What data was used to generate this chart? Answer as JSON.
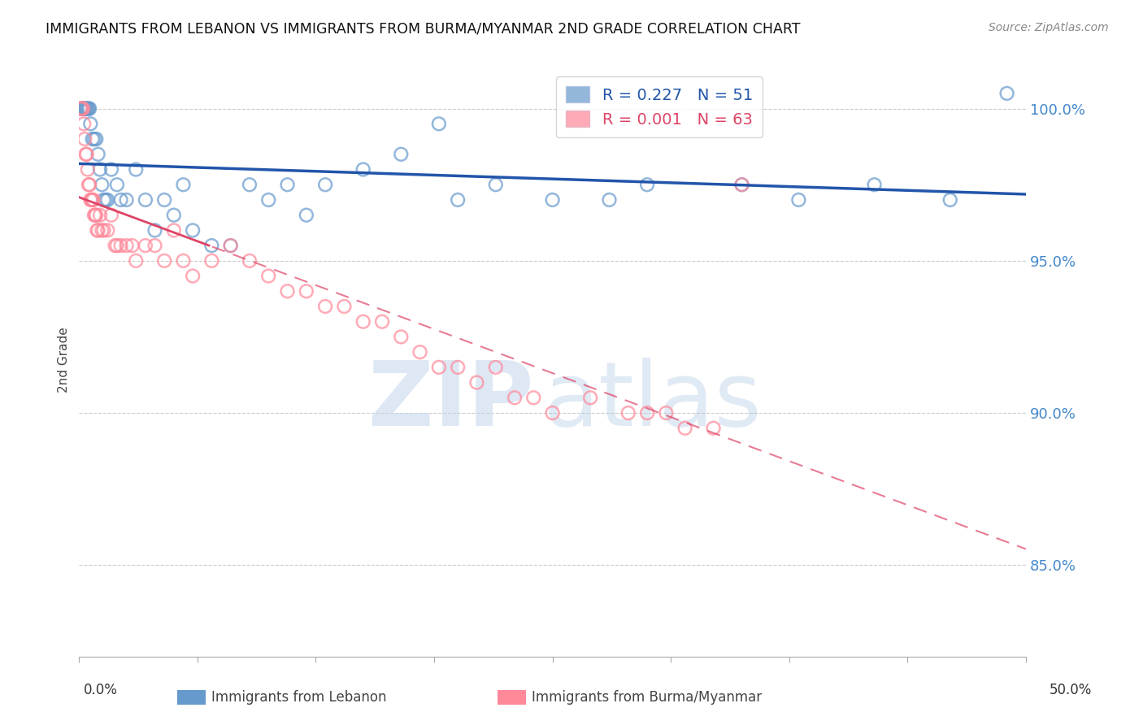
{
  "title": "IMMIGRANTS FROM LEBANON VS IMMIGRANTS FROM BURMA/MYANMAR 2ND GRADE CORRELATION CHART",
  "source": "Source: ZipAtlas.com",
  "ylabel": "2nd Grade",
  "legend_blue": "R = 0.227   N = 51",
  "legend_pink": "R = 0.001   N = 63",
  "blue_color": "#6699cc",
  "pink_color": "#ff8899",
  "trend_blue": "#2255aa",
  "trend_pink": "#dd4466",
  "yticks": [
    85.0,
    90.0,
    95.0,
    100.0
  ],
  "ylim": [
    82.0,
    101.5
  ],
  "xlim": [
    0.0,
    50.0
  ],
  "blue_x": [
    0.1,
    0.15,
    0.2,
    0.25,
    0.3,
    0.35,
    0.4,
    0.45,
    0.5,
    0.55,
    0.6,
    0.7,
    0.8,
    0.9,
    1.0,
    1.1,
    1.2,
    1.3,
    1.4,
    1.5,
    1.7,
    2.0,
    2.2,
    2.5,
    3.0,
    3.5,
    4.0,
    4.5,
    5.0,
    5.5,
    6.0,
    7.0,
    8.0,
    9.0,
    10.0,
    11.0,
    12.0,
    13.0,
    15.0,
    17.0,
    19.0,
    20.0,
    22.0,
    25.0,
    28.0,
    30.0,
    35.0,
    38.0,
    42.0,
    46.0,
    49.0
  ],
  "blue_y": [
    100.0,
    100.0,
    100.0,
    100.0,
    100.0,
    100.0,
    100.0,
    100.0,
    100.0,
    100.0,
    99.5,
    99.0,
    99.0,
    99.0,
    98.5,
    98.0,
    97.5,
    97.0,
    97.0,
    97.0,
    98.0,
    97.5,
    97.0,
    97.0,
    98.0,
    97.0,
    96.0,
    97.0,
    96.5,
    97.5,
    96.0,
    95.5,
    95.5,
    97.5,
    97.0,
    97.5,
    96.5,
    97.5,
    98.0,
    98.5,
    99.5,
    97.0,
    97.5,
    97.0,
    97.0,
    97.5,
    97.5,
    97.0,
    97.5,
    97.0,
    100.5
  ],
  "pink_x": [
    0.05,
    0.1,
    0.15,
    0.2,
    0.25,
    0.3,
    0.35,
    0.4,
    0.45,
    0.5,
    0.55,
    0.6,
    0.65,
    0.7,
    0.75,
    0.8,
    0.85,
    0.9,
    0.95,
    1.0,
    1.1,
    1.2,
    1.3,
    1.5,
    1.7,
    1.9,
    2.0,
    2.2,
    2.5,
    2.8,
    3.0,
    3.5,
    4.0,
    4.5,
    5.0,
    5.5,
    6.0,
    7.0,
    8.0,
    9.0,
    10.0,
    11.0,
    12.0,
    13.0,
    14.0,
    15.0,
    16.0,
    17.0,
    18.0,
    19.0,
    20.0,
    21.0,
    22.0,
    23.0,
    24.0,
    25.0,
    27.0,
    29.0,
    30.0,
    31.0,
    32.0,
    33.5,
    35.0
  ],
  "pink_y": [
    100.0,
    100.0,
    100.0,
    100.0,
    99.5,
    99.0,
    98.5,
    98.5,
    98.0,
    97.5,
    97.5,
    97.0,
    97.0,
    97.0,
    97.0,
    96.5,
    96.5,
    96.5,
    96.0,
    96.0,
    96.5,
    96.0,
    96.0,
    96.0,
    96.5,
    95.5,
    95.5,
    95.5,
    95.5,
    95.5,
    95.0,
    95.5,
    95.5,
    95.0,
    96.0,
    95.0,
    94.5,
    95.0,
    95.5,
    95.0,
    94.5,
    94.0,
    94.0,
    93.5,
    93.5,
    93.0,
    93.0,
    92.5,
    92.0,
    91.5,
    91.5,
    91.0,
    91.5,
    90.5,
    90.5,
    90.0,
    90.5,
    90.0,
    90.0,
    90.0,
    89.5,
    89.5,
    97.5
  ]
}
